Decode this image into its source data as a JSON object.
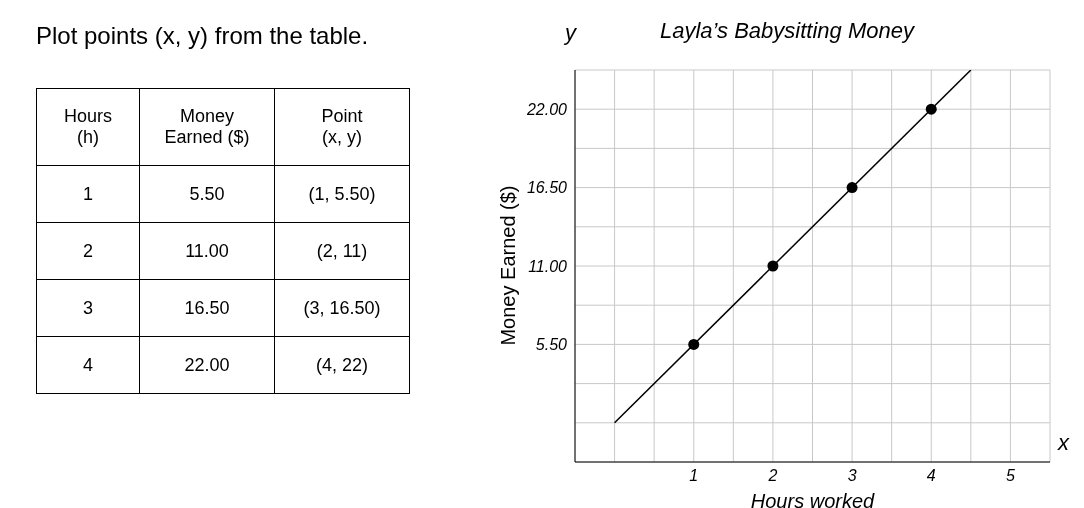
{
  "chart_data": {
    "type": "scatter",
    "title": "Layla’s Babysitting Money",
    "xlabel": "Hours worked",
    "ylabel": "Money Earned ($)",
    "annotations": [
      "Plot points (x, y) from the table.",
      "x",
      "y",
      "Hours (h)",
      "Money Earned ($)",
      "Point (x, y)",
      "1",
      "5.50",
      "(1, 5.50)",
      "2",
      "11.00",
      "(2, 11)",
      "3",
      "16.50",
      "(3, 16.50)",
      "4",
      "22.00",
      "(4, 22)"
    ],
    "series": [
      {
        "color": "#000000",
        "x": [
          1,
          2,
          3,
          4
        ],
        "values": [
          5.5,
          11,
          16.5,
          22
        ],
        "marker": "circle"
      },
      {
        "type": "line",
        "color": "#000000",
        "x": [
          0,
          4.5
        ],
        "values": [
          0,
          24.75
        ],
        "marker": "none"
      }
    ],
    "xlim": [
      -0.5,
      5.5
    ],
    "xticks": [
      {
        "value": -0.5,
        "label": null
      },
      {
        "value": 0,
        "label": null
      },
      {
        "value": 0.5,
        "label": null
      },
      1,
      {
        "value": 1.5,
        "label": null
      },
      2,
      {
        "value": 2.5,
        "label": null
      },
      3,
      {
        "value": 3.5,
        "label": null
      },
      4,
      {
        "value": 4.5,
        "label": null
      },
      5,
      {
        "value": 5.5,
        "label": null
      }
    ],
    "ylim": [
      -2.75,
      24.75
    ],
    "yticks": [
      {
        "value": -2.75,
        "label": null
      },
      {
        "value": 0,
        "label": null
      },
      {
        "value": 2.75,
        "label": null
      },
      {
        "value": 5.5,
        "label": "5.50"
      },
      {
        "value": 8.25,
        "label": null
      },
      {
        "value": 11,
        "label": "11.00"
      },
      {
        "value": 13.75,
        "label": null
      },
      {
        "value": 16.5,
        "label": "16.50"
      },
      {
        "value": 19.25,
        "label": null
      },
      {
        "value": 22,
        "label": "22.00"
      },
      {
        "value": 24.75,
        "label": null
      }
    ],
    "grid": true,
    "legend": false
  }
}
